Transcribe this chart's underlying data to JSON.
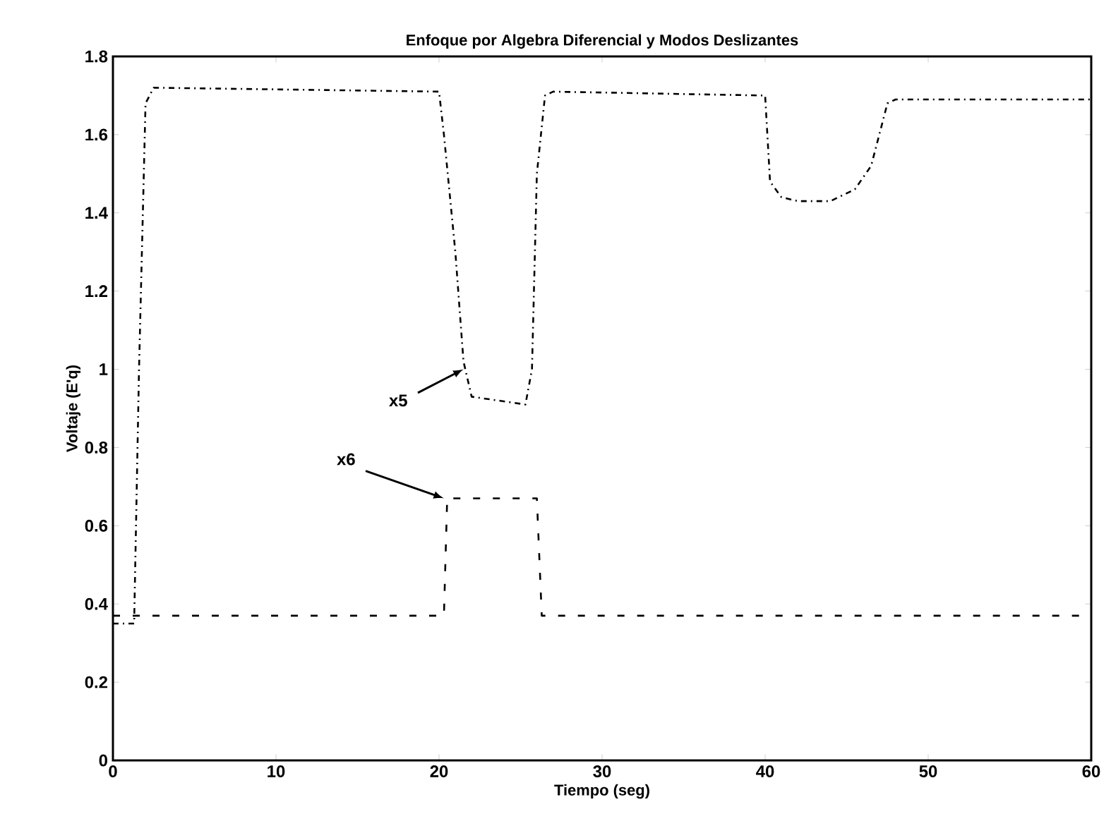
{
  "chart_data": {
    "type": "line",
    "title": "Enfoque por Algebra Diferencial y Modos Deslizantes",
    "xlabel": "Tiempo (seg)",
    "ylabel": "Voltaje (E'q)",
    "xlim": [
      0,
      60
    ],
    "ylim": [
      0,
      1.8
    ],
    "xticks": [
      0,
      10,
      20,
      30,
      40,
      50,
      60
    ],
    "yticks": [
      0,
      0.2,
      0.4,
      0.6,
      0.8,
      1,
      1.2,
      1.4,
      1.6,
      1.8
    ],
    "grid": false,
    "series": [
      {
        "color": "#000000",
        "line_style": "dotted",
        "x": [
          0,
          1.3,
          1.6,
          2,
          2.5,
          20,
          20.3,
          21,
          21.5,
          22,
          25.3,
          25.7,
          26,
          26.5,
          27,
          40,
          40.3,
          41,
          42,
          44,
          45.5,
          46.5,
          47.5,
          48,
          60
        ],
        "values": [
          0.35,
          0.35,
          1.0,
          1.68,
          1.72,
          1.71,
          1.6,
          1.3,
          1.02,
          0.93,
          0.91,
          1.0,
          1.5,
          1.7,
          1.71,
          1.7,
          1.48,
          1.44,
          1.43,
          1.43,
          1.46,
          1.52,
          1.68,
          1.69,
          1.69
        ]
      },
      {
        "color": "#000000",
        "line_style": "dashed",
        "x": [
          0,
          20.3,
          20.5,
          26,
          26.3,
          60
        ],
        "values": [
          0.37,
          0.37,
          0.67,
          0.67,
          0.37,
          0.37
        ]
      }
    ],
    "annotations": [
      {
        "text": "x5",
        "x": 21.5,
        "y": 1.0
      },
      {
        "text": "x6",
        "x": 20.3,
        "y": 0.67
      }
    ]
  }
}
